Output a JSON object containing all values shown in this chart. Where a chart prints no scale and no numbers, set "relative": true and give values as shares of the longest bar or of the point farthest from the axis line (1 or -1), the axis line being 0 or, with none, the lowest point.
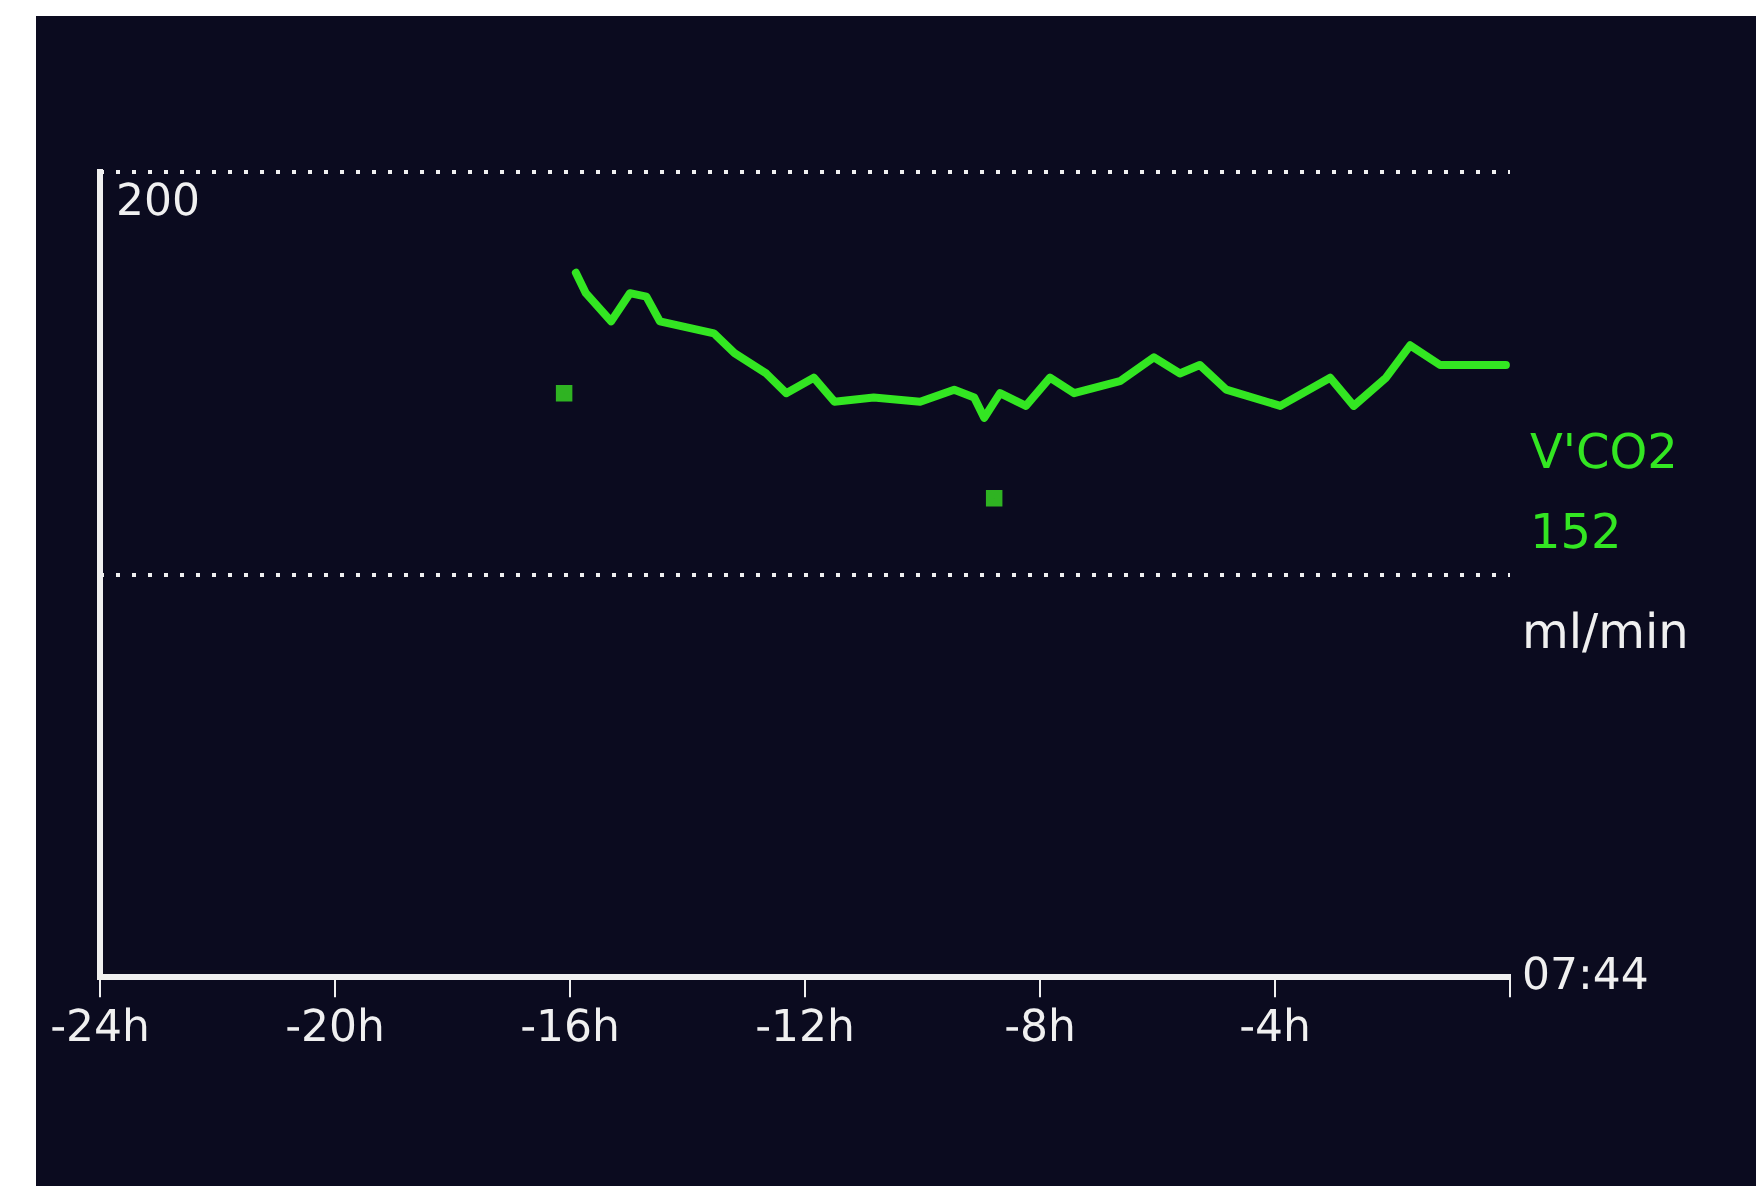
{
  "chart_data": {
    "type": "line",
    "relative": true,
    "ylabel": "ml/min",
    "annotations": [
      "152",
      "07:44",
      "200"
    ],
    "xlim": [
      -24,
      0
    ],
    "xticks": [
      {
        "value": -24,
        "label": "-24h"
      },
      {
        "value": -20,
        "label": "-20h"
      },
      {
        "value": -16,
        "label": "-16h"
      },
      {
        "value": -12,
        "label": "-12h"
      },
      {
        "value": -8,
        "label": "-8h"
      },
      {
        "value": -4,
        "label": "-4h"
      },
      {
        "value": 0,
        "label": null
      }
    ],
    "ref_lines": [
      {
        "axis": "y",
        "value": 1.143,
        "line_style": "dotted"
      },
      {
        "axis": "y",
        "value": 0.571,
        "line_style": "dotted"
      }
    ],
    "legend": false,
    "marker": "none",
    "series": [
      {
        "name": "V'CO2",
        "color": "#33e622",
        "x": [
          -15.9,
          -15.73,
          -15.3,
          -14.98,
          -14.7,
          -14.47,
          -13.55,
          -13.2,
          -12.66,
          -12.32,
          -11.85,
          -11.5,
          -10.83,
          -10.04,
          -9.46,
          -9.12,
          -8.95,
          -8.68,
          -8.24,
          -7.83,
          -7.42,
          -6.64,
          -6.06,
          -5.62,
          -5.28,
          -4.83,
          -3.91,
          -3.06,
          -2.66,
          -2.11,
          -1.7,
          -1.19,
          -0.07
        ],
        "values": [
          1,
          0.971,
          0.931,
          0.971,
          0.966,
          0.931,
          0.914,
          0.886,
          0.857,
          0.829,
          0.851,
          0.817,
          0.823,
          0.817,
          0.834,
          0.823,
          0.794,
          0.829,
          0.811,
          0.851,
          0.829,
          0.846,
          0.88,
          0.857,
          0.869,
          0.834,
          0.811,
          0.851,
          0.811,
          0.851,
          0.897,
          0.869,
          0.869
        ]
      },
      {
        "type": "scatter",
        "marker": "square",
        "color": "#2fb322",
        "x": [
          -16.1,
          -8.78
        ],
        "values": [
          0.829,
          0.68
        ]
      }
    ]
  }
}
